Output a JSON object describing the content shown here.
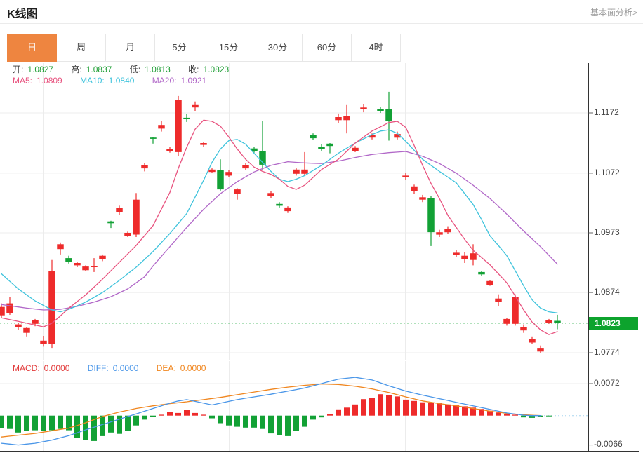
{
  "header": {
    "title": "K线图",
    "link": "基本面分析>"
  },
  "tabs": {
    "active": 0,
    "items": [
      "日",
      "周",
      "月",
      "5分",
      "15分",
      "30分",
      "60分",
      "4时"
    ]
  },
  "legend": {
    "open_label": "开:",
    "open": "1.0827",
    "high_label": "高:",
    "high": "1.0837",
    "low_label": "低:",
    "low": "1.0813",
    "close_label": "收:",
    "close": "1.0823",
    "ma5_label": "MA5:",
    "ma5": "1.0809",
    "ma10_label": "MA10:",
    "ma10": "1.0840",
    "ma20_label": "MA20:",
    "ma20": "1.0921"
  },
  "macd_legend": {
    "macd_label": "MACD:",
    "macd": "0.0000",
    "diff_label": "DIFF:",
    "diff": "0.0000",
    "dea_label": "DEA:",
    "dea": "0.0000"
  },
  "axis": {
    "price_ticks": [
      "1.1172",
      "1.1072",
      "1.0973",
      "1.0874",
      "1.0774"
    ],
    "current_price": "1.0823",
    "macd_tick_top": "0.0072",
    "macd_tick_bottom": "-0.0066"
  },
  "chart_data": {
    "type": "candlestick+macd",
    "title": "K线图",
    "period": "日",
    "price_axis": {
      "ticks": [
        1.1172,
        1.1072,
        1.0973,
        1.0874,
        1.0774
      ],
      "current_price": 1.0823
    },
    "macd_axis": {
      "ticks": [
        0.0072,
        -0.0066
      ]
    },
    "colors": {
      "up": "#ee2b2b",
      "down": "#12a135",
      "ma5": "#e8537f",
      "ma10": "#3fc3dc",
      "ma20": "#b168c8",
      "diff": "#4a96e8",
      "dea": "#f0861f",
      "hist_up": "#ee2b2b",
      "hist_down": "#12a135",
      "grid": "#ececec",
      "frame": "#333333",
      "dotted_price": "#2db04b",
      "dotted_zero": "#a9d5ef",
      "badge": "#0da32d",
      "tab_active": "#ee8540"
    },
    "candles_ohlc": [
      [
        1.0836,
        1.0856,
        1.0832,
        1.085
      ],
      [
        1.084,
        1.0867,
        1.0837,
        1.0856
      ],
      [
        1.0816,
        1.0824,
        1.0812,
        1.0821
      ],
      [
        1.0807,
        1.0817,
        1.0801,
        1.0815
      ],
      [
        1.0822,
        1.083,
        1.0818,
        1.0828
      ],
      [
        1.0789,
        1.0802,
        1.0784,
        1.0794
      ],
      [
        1.0788,
        1.0928,
        1.0782,
        1.091
      ],
      [
        1.0946,
        1.0957,
        1.0937,
        1.0954
      ],
      [
        1.0931,
        1.0935,
        1.0922,
        1.0925
      ],
      [
        1.0919,
        1.0925,
        1.0916,
        1.0923
      ],
      [
        1.0911,
        1.0919,
        1.0909,
        1.0917
      ],
      [
        1.0916,
        1.0931,
        1.0908,
        1.0918
      ],
      [
        1.0929,
        1.0937,
        1.0926,
        1.0935
      ],
      [
        1.0992,
        1.0993,
        1.0981,
        1.0989
      ],
      [
        1.1008,
        1.1018,
        1.1003,
        1.1014
      ],
      [
        1.0968,
        1.0975,
        1.0966,
        1.0973
      ],
      [
        1.097,
        1.1039,
        1.0966,
        1.1028
      ],
      [
        1.108,
        1.1089,
        1.1075,
        1.1085
      ],
      [
        1.1131,
        1.1132,
        1.1121,
        1.1129
      ],
      [
        1.1146,
        1.1159,
        1.1141,
        1.1152
      ],
      [
        1.1108,
        1.1116,
        1.1106,
        1.1112
      ],
      [
        1.1107,
        1.12,
        1.1101,
        1.1193
      ],
      [
        1.1164,
        1.117,
        1.1157,
        1.1162
      ],
      [
        1.1181,
        1.1191,
        1.1175,
        1.1185
      ],
      [
        1.1119,
        1.1124,
        1.1116,
        1.1122
      ],
      [
        1.1074,
        1.108,
        1.1072,
        1.1078
      ],
      [
        1.1077,
        1.1095,
        1.1043,
        1.1045
      ],
      [
        1.1068,
        1.1077,
        1.1066,
        1.1074
      ],
      [
        1.1037,
        1.1047,
        1.1028,
        1.1045
      ],
      [
        1.108,
        1.1089,
        1.1077,
        1.1085
      ],
      [
        1.1113,
        1.1115,
        1.1106,
        1.1109
      ],
      [
        1.1109,
        1.1158,
        1.1078,
        1.1086
      ],
      [
        1.1034,
        1.1042,
        1.103,
        1.1039
      ],
      [
        1.1021,
        1.1024,
        1.1015,
        1.1018
      ],
      [
        1.1009,
        1.1017,
        1.1006,
        1.1015
      ],
      [
        1.1071,
        1.108,
        1.1068,
        1.1078
      ],
      [
        1.1071,
        1.1107,
        1.1068,
        1.1078
      ],
      [
        1.1135,
        1.1138,
        1.1127,
        1.113
      ],
      [
        1.1116,
        1.112,
        1.1108,
        1.1112
      ],
      [
        1.1121,
        1.1122,
        1.1105,
        1.1117
      ],
      [
        1.116,
        1.1171,
        1.1155,
        1.1165
      ],
      [
        1.116,
        1.1185,
        1.1138,
        1.1167
      ],
      [
        1.1109,
        1.1117,
        1.1107,
        1.1114
      ],
      [
        1.1178,
        1.1186,
        1.1173,
        1.1181
      ],
      [
        1.1131,
        1.1138,
        1.1128,
        1.1135
      ],
      [
        1.1179,
        1.1182,
        1.1172,
        1.1175
      ],
      [
        1.1179,
        1.1207,
        1.1126,
        1.1158
      ],
      [
        1.1131,
        1.1141,
        1.1128,
        1.1137
      ],
      [
        1.1065,
        1.1072,
        1.1061,
        1.1068
      ],
      [
        1.1042,
        1.1053,
        1.1038,
        1.105
      ],
      [
        1.1028,
        1.1036,
        1.1024,
        1.1032
      ],
      [
        1.103,
        1.1034,
        1.0951,
        1.0974
      ],
      [
        1.097,
        1.0978,
        1.0966,
        1.0974
      ],
      [
        1.0974,
        1.0984,
        1.0971,
        1.098
      ],
      [
        1.0937,
        1.0944,
        1.0933,
        1.094
      ],
      [
        1.0929,
        1.0941,
        1.0923,
        1.0935
      ],
      [
        1.0928,
        1.0954,
        1.0919,
        1.0939
      ],
      [
        1.0908,
        1.091,
        1.0901,
        1.0904
      ],
      [
        1.0887,
        1.0895,
        1.0885,
        1.0893
      ],
      [
        1.0858,
        1.0871,
        1.0851,
        1.0864
      ],
      [
        1.0822,
        1.0832,
        1.0819,
        1.083
      ],
      [
        1.0822,
        1.0871,
        1.0819,
        1.0867
      ],
      [
        1.0811,
        1.0821,
        1.0807,
        1.0816
      ],
      [
        1.0791,
        1.0801,
        1.0789,
        1.0797
      ],
      [
        1.0776,
        1.0786,
        1.0774,
        1.0782
      ],
      [
        1.0824,
        1.083,
        1.0822,
        1.0828
      ],
      [
        1.0827,
        1.0837,
        1.0813,
        1.0823
      ]
    ],
    "ma5_points": [
      [
        0,
        1.0832
      ],
      [
        2,
        1.0826
      ],
      [
        4,
        1.082
      ],
      [
        5,
        1.0817
      ],
      [
        6,
        1.0823
      ],
      [
        7,
        1.0835
      ],
      [
        8,
        1.0848
      ],
      [
        10,
        1.087
      ],
      [
        12,
        1.0896
      ],
      [
        14,
        1.0924
      ],
      [
        16,
        1.0952
      ],
      [
        18,
        1.0985
      ],
      [
        20,
        1.104
      ],
      [
        21,
        1.108
      ],
      [
        22,
        1.1115
      ],
      [
        23,
        1.1145
      ],
      [
        24,
        1.116
      ],
      [
        25,
        1.1158
      ],
      [
        26,
        1.115
      ],
      [
        27,
        1.1132
      ],
      [
        28,
        1.1112
      ],
      [
        29,
        1.1095
      ],
      [
        30,
        1.1082
      ],
      [
        31,
        1.1075
      ],
      [
        32,
        1.107
      ],
      [
        33,
        1.1062
      ],
      [
        34,
        1.105
      ],
      [
        35,
        1.1045
      ],
      [
        36,
        1.1052
      ],
      [
        37,
        1.1065
      ],
      [
        38,
        1.1078
      ],
      [
        40,
        1.1095
      ],
      [
        42,
        1.1122
      ],
      [
        44,
        1.1142
      ],
      [
        46,
        1.1156
      ],
      [
        47,
        1.1158
      ],
      [
        48,
        1.1148
      ],
      [
        49,
        1.1118
      ],
      [
        50,
        1.1085
      ],
      [
        51,
        1.1055
      ],
      [
        52,
        1.103
      ],
      [
        53,
        1.1002
      ],
      [
        54,
        1.0982
      ],
      [
        55,
        1.0962
      ],
      [
        56,
        1.0944
      ],
      [
        57,
        1.0932
      ],
      [
        58,
        1.092
      ],
      [
        59,
        1.0905
      ],
      [
        60,
        1.089
      ],
      [
        61,
        1.0868
      ],
      [
        62,
        1.0845
      ],
      [
        63,
        1.0825
      ],
      [
        64,
        1.0812
      ],
      [
        65,
        1.0804
      ],
      [
        66,
        1.0809
      ]
    ],
    "ma10_points": [
      [
        0,
        1.0905
      ],
      [
        2,
        1.088
      ],
      [
        4,
        1.086
      ],
      [
        6,
        1.0845
      ],
      [
        7,
        1.0842
      ],
      [
        8,
        1.0846
      ],
      [
        10,
        1.0858
      ],
      [
        12,
        1.0874
      ],
      [
        14,
        1.0894
      ],
      [
        16,
        1.0916
      ],
      [
        18,
        1.0942
      ],
      [
        20,
        1.0972
      ],
      [
        22,
        1.1005
      ],
      [
        24,
        1.106
      ],
      [
        25,
        1.109
      ],
      [
        26,
        1.1112
      ],
      [
        27,
        1.1126
      ],
      [
        28,
        1.1128
      ],
      [
        29,
        1.112
      ],
      [
        30,
        1.1105
      ],
      [
        31,
        1.109
      ],
      [
        32,
        1.1075
      ],
      [
        33,
        1.1062
      ],
      [
        34,
        1.1058
      ],
      [
        35,
        1.1062
      ],
      [
        36,
        1.1068
      ],
      [
        38,
        1.1085
      ],
      [
        40,
        1.1105
      ],
      [
        42,
        1.1122
      ],
      [
        44,
        1.1136
      ],
      [
        45,
        1.1142
      ],
      [
        46,
        1.1144
      ],
      [
        47,
        1.1138
      ],
      [
        48,
        1.1125
      ],
      [
        49,
        1.111
      ],
      [
        50,
        1.1095
      ],
      [
        52,
        1.1075
      ],
      [
        54,
        1.1056
      ],
      [
        56,
        1.102
      ],
      [
        57,
        1.0995
      ],
      [
        58,
        1.0968
      ],
      [
        59,
        1.0952
      ],
      [
        60,
        1.0935
      ],
      [
        61,
        1.091
      ],
      [
        62,
        1.0885
      ],
      [
        63,
        1.0862
      ],
      [
        64,
        1.0848
      ],
      [
        65,
        1.0842
      ],
      [
        66,
        1.084
      ]
    ],
    "ma20_points": [
      [
        0,
        1.0854
      ],
      [
        3,
        1.0848
      ],
      [
        5,
        1.0845
      ],
      [
        7,
        1.0846
      ],
      [
        9,
        1.0851
      ],
      [
        11,
        1.0858
      ],
      [
        13,
        1.0867
      ],
      [
        15,
        1.088
      ],
      [
        17,
        1.09
      ],
      [
        18,
        1.0918
      ],
      [
        20,
        1.095
      ],
      [
        22,
        1.0982
      ],
      [
        24,
        1.1012
      ],
      [
        26,
        1.1038
      ],
      [
        28,
        1.1058
      ],
      [
        30,
        1.1074
      ],
      [
        32,
        1.1085
      ],
      [
        34,
        1.1091
      ],
      [
        36,
        1.1089
      ],
      [
        38,
        1.1088
      ],
      [
        40,
        1.1092
      ],
      [
        42,
        1.1098
      ],
      [
        44,
        1.1103
      ],
      [
        46,
        1.1106
      ],
      [
        48,
        1.1108
      ],
      [
        50,
        1.11
      ],
      [
        52,
        1.1088
      ],
      [
        54,
        1.1072
      ],
      [
        56,
        1.1052
      ],
      [
        58,
        1.103
      ],
      [
        60,
        1.1004
      ],
      [
        62,
        1.0976
      ],
      [
        64,
        1.095
      ],
      [
        66,
        1.0921
      ]
    ],
    "macd_hist": [
      -0.0028,
      -0.003,
      -0.0038,
      -0.0035,
      -0.0033,
      -0.0035,
      -0.0033,
      -0.003,
      -0.0033,
      -0.005,
      -0.0054,
      -0.0057,
      -0.0046,
      -0.0038,
      -0.0041,
      -0.0035,
      -0.0022,
      -0.0009,
      -0.0003,
      0.0002,
      0.0008,
      0.0006,
      0.0013,
      0.0006,
      0.0002,
      -0.0006,
      -0.0017,
      -0.0022,
      -0.0025,
      -0.0027,
      -0.0027,
      -0.003,
      -0.004,
      -0.0043,
      -0.0046,
      -0.0035,
      -0.0025,
      -0.0009,
      -0.0004,
      0.0004,
      0.0014,
      0.0018,
      0.0025,
      0.0037,
      0.004,
      0.0048,
      0.0046,
      0.0043,
      0.0036,
      0.0033,
      0.003,
      0.0028,
      0.0029,
      0.0025,
      0.0023,
      0.0021,
      0.0018,
      0.0015,
      0.0011,
      0.0007,
      0.0004,
      0.0002,
      -0.0004,
      -0.0005,
      -0.0003,
      -0.0001,
      0.0
    ],
    "diff_points": [
      [
        0,
        -0.0062
      ],
      [
        2,
        -0.0066
      ],
      [
        4,
        -0.0062
      ],
      [
        6,
        -0.0055
      ],
      [
        8,
        -0.0045
      ],
      [
        10,
        -0.0032
      ],
      [
        12,
        -0.002
      ],
      [
        14,
        -0.0008
      ],
      [
        16,
        0.0004
      ],
      [
        18,
        0.0016
      ],
      [
        20,
        0.0028
      ],
      [
        21,
        0.0033
      ],
      [
        22,
        0.0036
      ],
      [
        24,
        0.0028
      ],
      [
        25,
        0.0024
      ],
      [
        26,
        0.0028
      ],
      [
        28,
        0.0036
      ],
      [
        30,
        0.0042
      ],
      [
        32,
        0.0048
      ],
      [
        34,
        0.0055
      ],
      [
        36,
        0.0062
      ],
      [
        38,
        0.0072
      ],
      [
        40,
        0.0082
      ],
      [
        42,
        0.0086
      ],
      [
        44,
        0.008
      ],
      [
        46,
        0.0067
      ],
      [
        48,
        0.0055
      ],
      [
        50,
        0.0046
      ],
      [
        52,
        0.0038
      ],
      [
        54,
        0.003
      ],
      [
        56,
        0.0022
      ],
      [
        58,
        0.0014
      ],
      [
        60,
        0.0006
      ],
      [
        62,
        0.0001
      ],
      [
        63,
        0.0
      ],
      [
        66,
        0.0
      ]
    ],
    "dea_points": [
      [
        0,
        -0.0048
      ],
      [
        4,
        -0.004
      ],
      [
        8,
        -0.0028
      ],
      [
        10,
        -0.0016
      ],
      [
        12,
        -0.0002
      ],
      [
        14,
        0.0008
      ],
      [
        16,
        0.0016
      ],
      [
        18,
        0.0022
      ],
      [
        20,
        0.0027
      ],
      [
        22,
        0.0031
      ],
      [
        24,
        0.0036
      ],
      [
        26,
        0.0041
      ],
      [
        28,
        0.0047
      ],
      [
        30,
        0.0053
      ],
      [
        32,
        0.0059
      ],
      [
        34,
        0.0064
      ],
      [
        36,
        0.0068
      ],
      [
        38,
        0.0071
      ],
      [
        40,
        0.007
      ],
      [
        42,
        0.0066
      ],
      [
        44,
        0.006
      ],
      [
        46,
        0.0052
      ],
      [
        48,
        0.0042
      ],
      [
        50,
        0.0033
      ],
      [
        52,
        0.0027
      ],
      [
        54,
        0.0022
      ],
      [
        56,
        0.0016
      ],
      [
        58,
        0.001
      ],
      [
        60,
        0.0005
      ],
      [
        62,
        0.0002
      ],
      [
        64,
        0.0
      ],
      [
        66,
        0.0
      ]
    ]
  }
}
